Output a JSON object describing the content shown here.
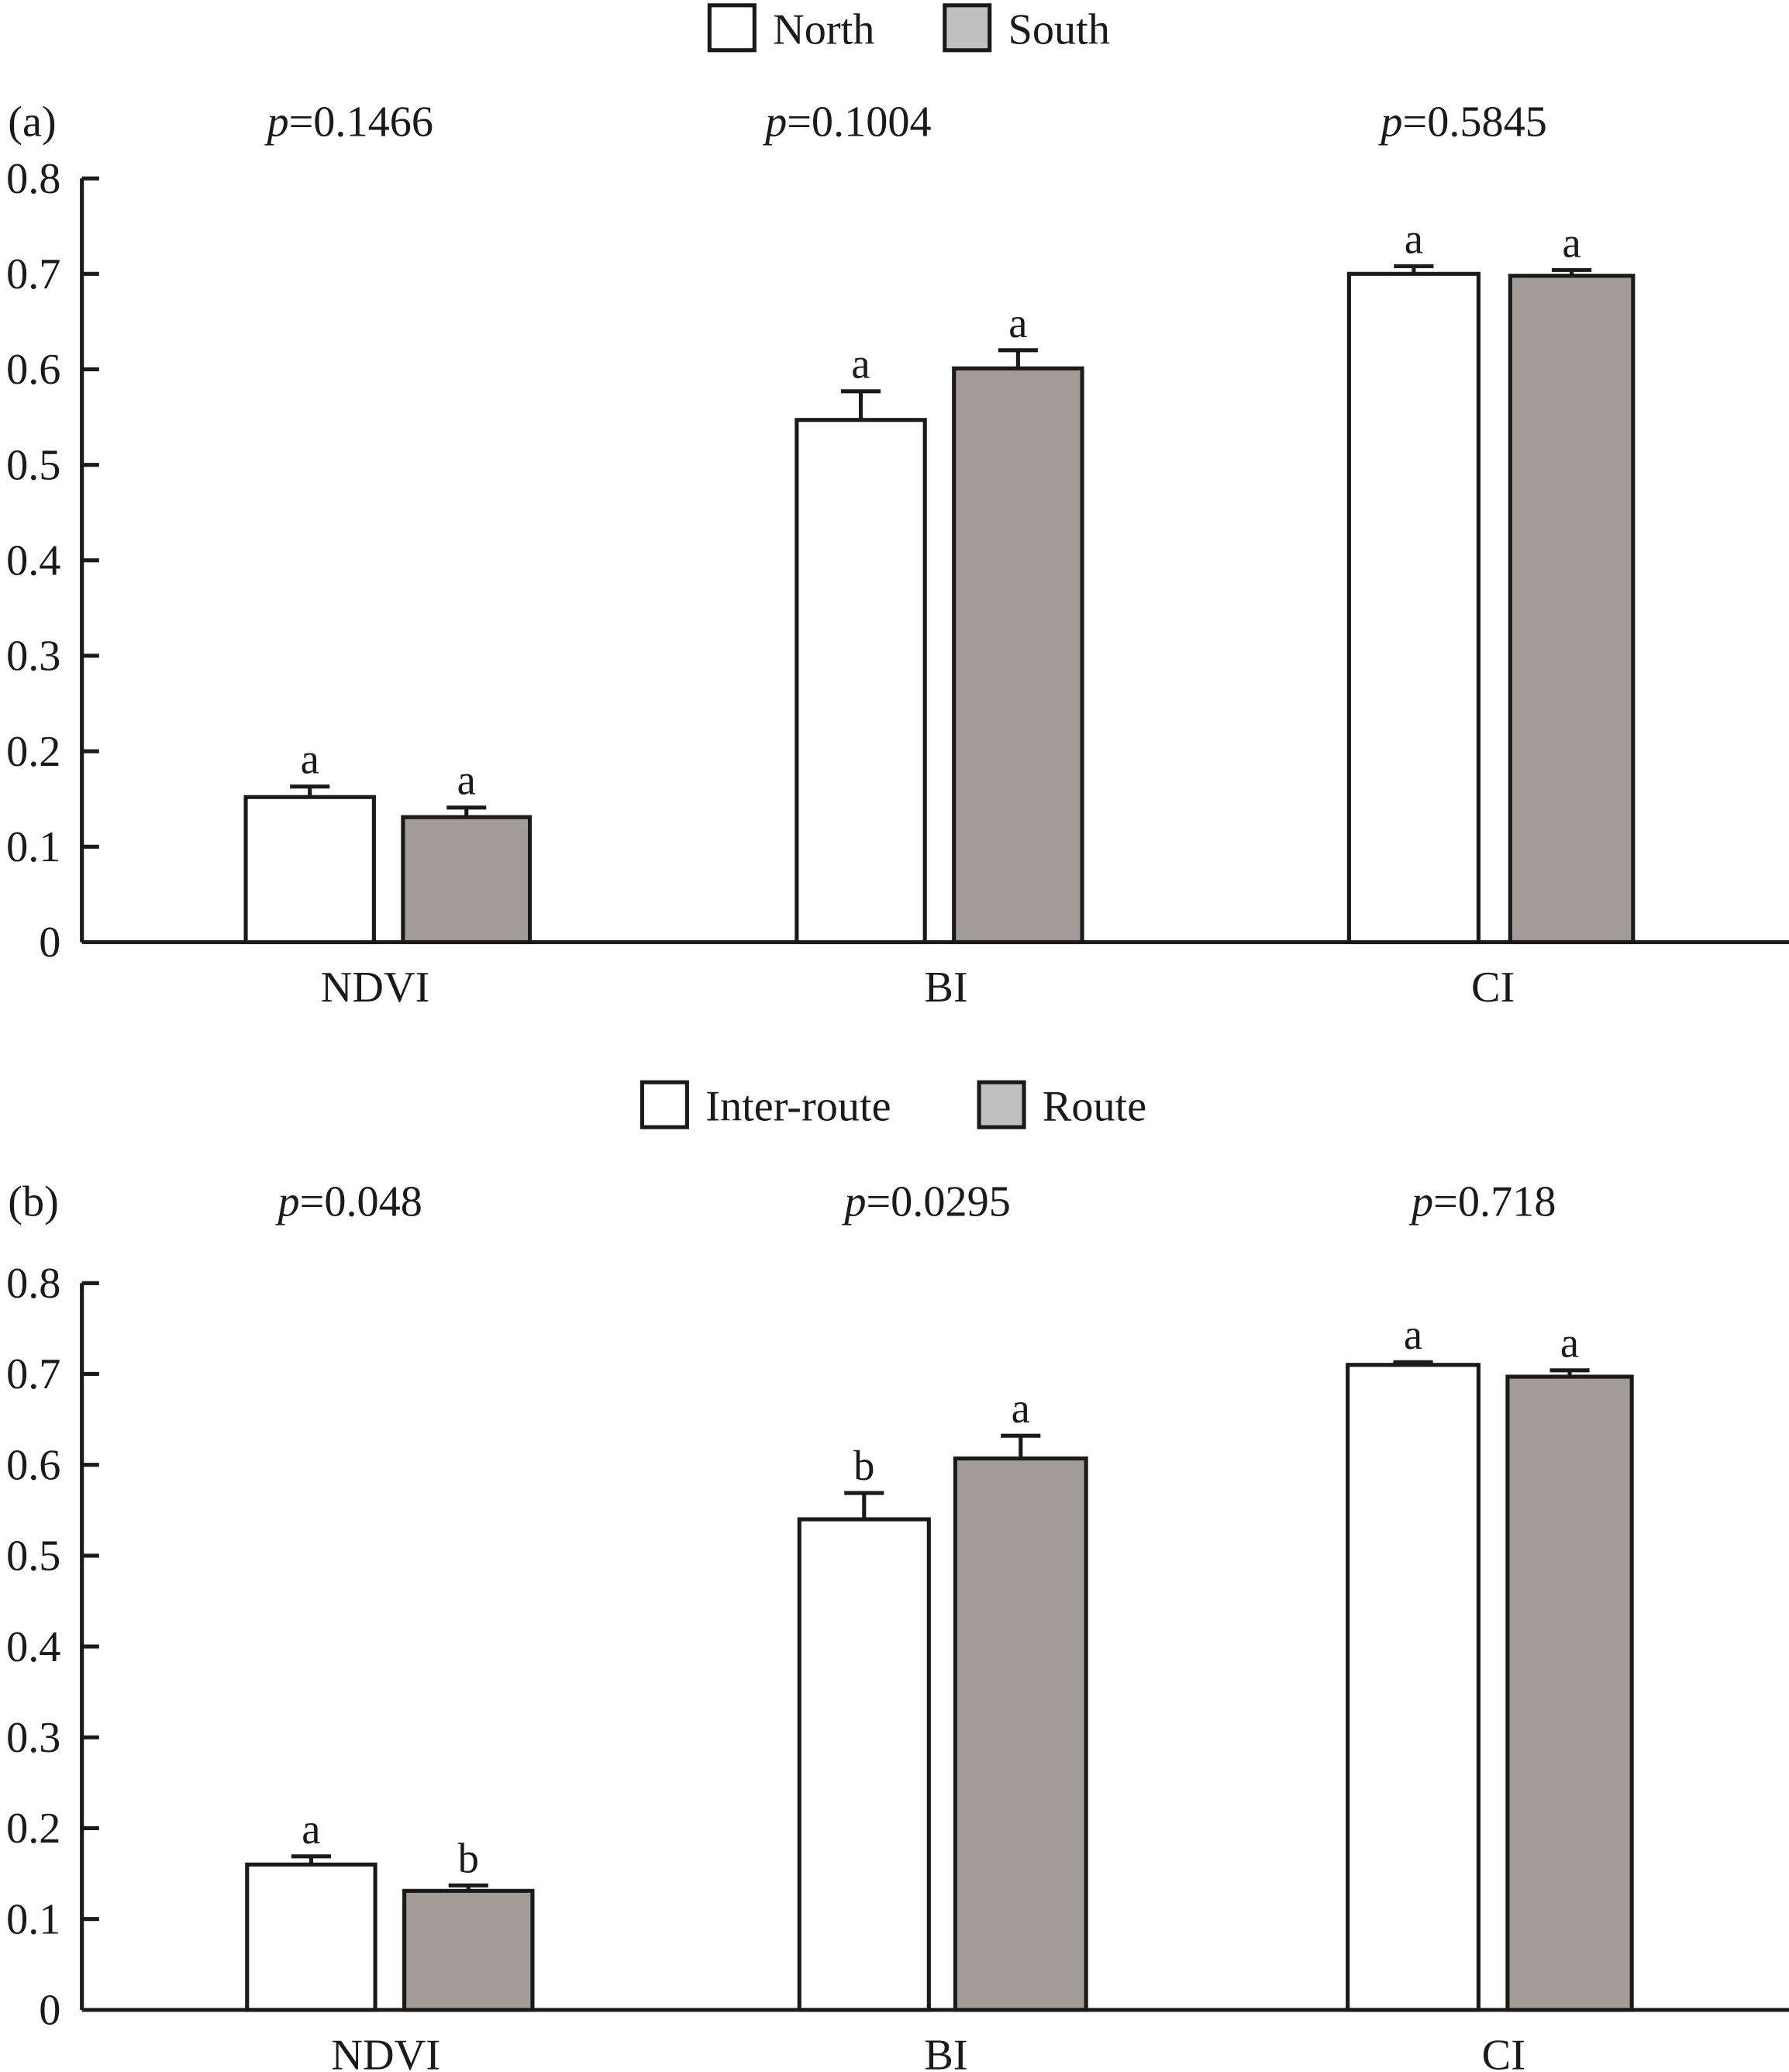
{
  "chart_data": [
    {
      "type": "bar",
      "panel_label": "(a)",
      "categories": [
        "NDVI",
        "BI",
        "CI"
      ],
      "series": [
        {
          "name": "North",
          "color": "#ffffff",
          "values": [
            0.152,
            0.547,
            0.7
          ],
          "errors": [
            0.011,
            0.03,
            0.008
          ],
          "letters": [
            "a",
            "a",
            "a"
          ]
        },
        {
          "name": "South",
          "color": "#a39b98",
          "values": [
            0.131,
            0.601,
            0.698
          ],
          "errors": [
            0.01,
            0.019,
            0.006
          ],
          "letters": [
            "a",
            "a",
            "a"
          ]
        }
      ],
      "legend": [
        {
          "label": "North",
          "swatch": "#ffffff"
        },
        {
          "label": "South",
          "swatch": "#c0c0c0"
        }
      ],
      "legend_position": "top-center",
      "p_values": [
        {
          "italic": "p",
          "text": "=0.1466"
        },
        {
          "italic": "p",
          "text": "=0.1004"
        },
        {
          "italic": "p",
          "text": "=0.5845"
        }
      ],
      "ylim": [
        0,
        0.8
      ],
      "yticks": [
        "0",
        "0.1",
        "0.2",
        "0.3",
        "0.4",
        "0.5",
        "0.6",
        "0.7",
        "0.8"
      ],
      "ytick_values": [
        0,
        0.1,
        0.2,
        0.3,
        0.4,
        0.5,
        0.6,
        0.7,
        0.8
      ],
      "title": "",
      "xlabel": "",
      "ylabel": "",
      "grid": false
    },
    {
      "type": "bar",
      "panel_label": "(b)",
      "categories": [
        "NDVI",
        "BI",
        "CI"
      ],
      "series": [
        {
          "name": "Inter-route",
          "color": "#ffffff",
          "values": [
            0.16,
            0.54,
            0.71
          ],
          "errors": [
            0.009,
            0.029,
            0.003
          ],
          "letters": [
            "a",
            "b",
            "a"
          ]
        },
        {
          "name": "Route",
          "color": "#a39b98",
          "values": [
            0.131,
            0.607,
            0.697
          ],
          "errors": [
            0.006,
            0.025,
            0.007
          ],
          "letters": [
            "b",
            "a",
            "a"
          ]
        }
      ],
      "legend": [
        {
          "label": "Inter-route",
          "swatch": "#ffffff"
        },
        {
          "label": "Route",
          "swatch": "#c0c0c0"
        }
      ],
      "legend_position": "top-center",
      "p_values": [
        {
          "italic": "p",
          "text": "=0.048"
        },
        {
          "italic": "p",
          "text": "=0.0295"
        },
        {
          "italic": "p",
          "text": "=0.718"
        }
      ],
      "ylim": [
        0,
        0.8
      ],
      "yticks": [
        "0",
        "0.1",
        "0.2",
        "0.3",
        "0.4",
        "0.5",
        "0.6",
        "0.7",
        "0.8"
      ],
      "ytick_values": [
        0,
        0.1,
        0.2,
        0.3,
        0.4,
        0.5,
        0.6,
        0.7,
        0.8
      ],
      "title": "",
      "xlabel": "",
      "ylabel": "",
      "grid": false
    }
  ]
}
